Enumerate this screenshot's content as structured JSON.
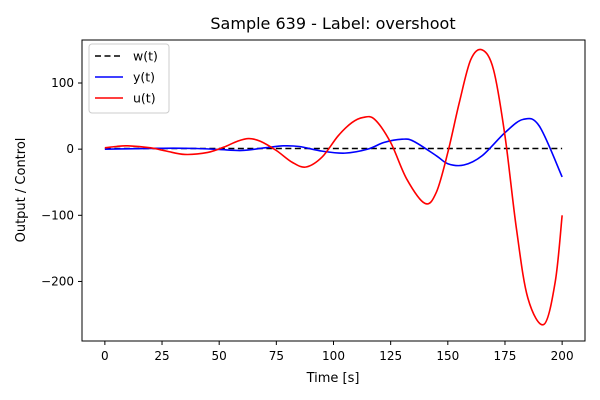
{
  "chart_data": {
    "type": "line",
    "title": "Sample 639 - Label: overshoot",
    "xlabel": "Time [s]",
    "ylabel": "Output / Control",
    "xlim": [
      -10,
      210
    ],
    "ylim": [
      -290,
      165
    ],
    "xticks": [
      0,
      25,
      50,
      75,
      100,
      125,
      150,
      175,
      200
    ],
    "yticks": [
      -200,
      -100,
      0,
      100
    ],
    "ytick_labels": [
      "−200",
      "−100",
      "0",
      "100"
    ],
    "grid": false,
    "legend_position": "top-left",
    "series": [
      {
        "name": "w(t)",
        "color": "#000000",
        "dash": "dashed",
        "x": [
          0,
          200
        ],
        "y": [
          1,
          1
        ]
      },
      {
        "name": "y(t)",
        "color": "#0000ff",
        "dash": "solid",
        "x": [
          0,
          10,
          20,
          30,
          40,
          50,
          60,
          70,
          78,
          85,
          95,
          105,
          115,
          122,
          130,
          135,
          145,
          150,
          157,
          165,
          175,
          183,
          190,
          200
        ],
        "y": [
          0,
          0.5,
          1,
          1.5,
          1,
          -0.5,
          -2,
          2,
          5,
          4,
          -3,
          -6,
          0,
          10,
          15,
          12,
          -10,
          -22,
          -24,
          -10,
          25,
          45,
          35,
          -42
        ]
      },
      {
        "name": "u(t)",
        "color": "#ff0000",
        "dash": "solid",
        "x": [
          0,
          5,
          10,
          20,
          27,
          35,
          45,
          52,
          58,
          63,
          68,
          75,
          82,
          88,
          95,
          102,
          108,
          113,
          118,
          125,
          132,
          140,
          145,
          150,
          155,
          160,
          165,
          170,
          175,
          180,
          185,
          192,
          197,
          200
        ],
        "y": [
          2,
          4,
          5,
          2,
          -3,
          -8,
          -5,
          3,
          12,
          16,
          12,
          -2,
          -20,
          -27,
          -12,
          20,
          40,
          48,
          45,
          10,
          -45,
          -82,
          -65,
          -5,
          70,
          135,
          150,
          120,
          20,
          -120,
          -225,
          -265,
          -200,
          -100
        ]
      }
    ]
  }
}
